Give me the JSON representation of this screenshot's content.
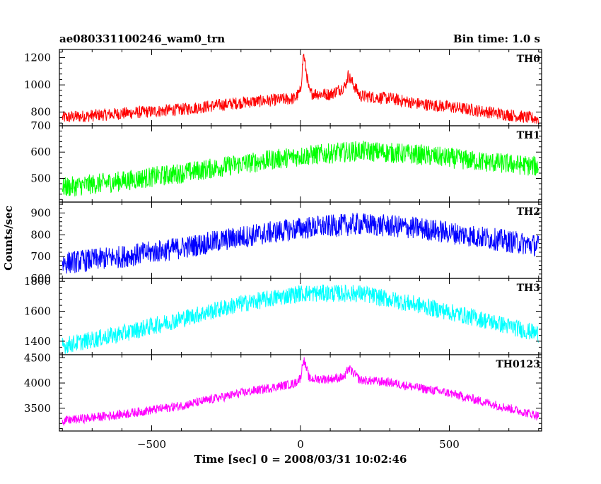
{
  "chart_data": {
    "type": "line",
    "title": "ae080331100246_wam0_trn",
    "bin_time_label": "Bin time: 1.0 s",
    "xlabel": "Time [sec] 0 = 2008/03/31 10:02:46",
    "ylabel": "Counts/sec",
    "xlim": [
      -810,
      810
    ],
    "x_ticks": [
      -500,
      0,
      500
    ],
    "x_tick_labels": [
      "−500",
      "0",
      "500"
    ],
    "grid": false,
    "panels": [
      {
        "name": "TH0",
        "color": "#ff0000",
        "ylim": [
          700,
          1260
        ],
        "y_ticks": [
          800,
          1000,
          1200
        ],
        "y_tick_labels": [
          "800",
          "1000",
          "1200"
        ],
        "x": [
          -800,
          -600,
          -400,
          -200,
          -20,
          0,
          10,
          30,
          100,
          150,
          160,
          200,
          300,
          400,
          500,
          600,
          700,
          800
        ],
        "y": [
          760,
          790,
          820,
          870,
          900,
          950,
          1230,
          940,
          930,
          990,
          1070,
          920,
          900,
          860,
          840,
          810,
          780,
          750
        ],
        "noise": 35
      },
      {
        "name": "TH1",
        "color": "#00ff00",
        "ylim": [
          410,
          700
        ],
        "y_ticks": [
          500,
          600,
          700
        ],
        "y_tick_labels": [
          "500",
          "600",
          "700"
        ],
        "x": [
          -800,
          -600,
          -400,
          -200,
          0,
          200,
          400,
          600,
          800
        ],
        "y": [
          465,
          490,
          520,
          555,
          585,
          605,
          590,
          565,
          545
        ],
        "noise": 30
      },
      {
        "name": "TH2",
        "color": "#0000ff",
        "ylim": [
          600,
          950
        ],
        "y_ticks": [
          600,
          700,
          800,
          900
        ],
        "y_tick_labels": [
          "600",
          "700",
          "800",
          "900"
        ],
        "x": [
          -800,
          -600,
          -400,
          -200,
          0,
          200,
          400,
          600,
          800
        ],
        "y": [
          670,
          700,
          740,
          790,
          830,
          850,
          830,
          790,
          750
        ],
        "noise": 40
      },
      {
        "name": "TH3",
        "color": "#00ffff",
        "ylim": [
          1310,
          1820
        ],
        "y_ticks": [
          1400,
          1600,
          1800
        ],
        "y_tick_labels": [
          "1400",
          "1600",
          "1800"
        ],
        "x": [
          -800,
          -600,
          -400,
          -200,
          0,
          200,
          400,
          600,
          800
        ],
        "y": [
          1370,
          1450,
          1550,
          1650,
          1720,
          1720,
          1640,
          1550,
          1450
        ],
        "noise": 45
      },
      {
        "name": "TH0123",
        "color": "#ff00ff",
        "ylim": [
          3050,
          4560
        ],
        "y_ticks": [
          3500,
          4000,
          4500
        ],
        "y_tick_labels": [
          "3500",
          "4000",
          "4500"
        ],
        "x": [
          -800,
          -600,
          -400,
          -200,
          -20,
          0,
          10,
          30,
          100,
          150,
          160,
          200,
          300,
          400,
          500,
          600,
          700,
          800
        ],
        "y": [
          3250,
          3380,
          3550,
          3800,
          3990,
          4100,
          4480,
          4080,
          4080,
          4120,
          4300,
          4060,
          4010,
          3900,
          3800,
          3650,
          3500,
          3350
        ],
        "noise": 70
      }
    ]
  }
}
